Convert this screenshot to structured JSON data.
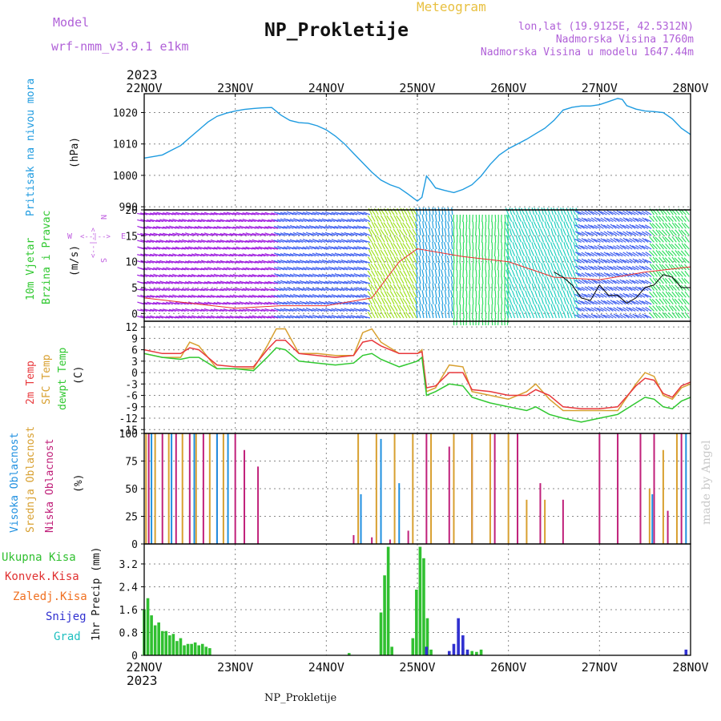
{
  "header": {
    "model_label": "Model",
    "model_name": "wrf-nmm_v3.9.1 e1km",
    "station_title": "NP_Prokletije",
    "meteogram_label": "Meteogram",
    "lonlat": "lon,lat (19.9125E, 42.5312N)",
    "elevation": "Nadmorska Visina 1760m",
    "model_elevation": "Nadmorska Visina u modelu 1647.44m",
    "year_top": "2023",
    "year_bottom": "2023",
    "footer_station": "NP_Prokletije",
    "credit": "made by Angel"
  },
  "colors": {
    "pressure": "#1e9be0",
    "temp2m": "#e8383c",
    "tempsfc": "#d8a030",
    "dewpt": "#30c830",
    "high_cloud": "#2090e0",
    "mid_cloud": "#d8a030",
    "low_cloud": "#c0207a",
    "total_precip": "#30c030",
    "conv_precip": "#e03030",
    "frz_precip": "#f07020",
    "snow": "#3030d0",
    "hail": "#20c0c0",
    "wind_dir_legend": "#c060e0"
  },
  "chart_data": [
    {
      "type": "line",
      "panel": "pressure",
      "ylabel_lines": [
        "Pritisak na nivou mora"
      ],
      "unit": "(hPa)",
      "x_tick_labels": [
        "22NOV",
        "23NOV",
        "24NOV",
        "25NOV",
        "26NOV",
        "27NOV",
        "28NOV"
      ],
      "x_range_days": [
        0,
        6
      ],
      "ylim": [
        989,
        1026
      ],
      "yticks": [
        990,
        1000,
        1010,
        1020
      ],
      "grid": true,
      "series": [
        {
          "key": "pressure",
          "x": [
            0,
            0.1,
            0.2,
            0.3,
            0.4,
            0.5,
            0.6,
            0.7,
            0.8,
            0.9,
            1.0,
            1.1,
            1.2,
            1.3,
            1.4,
            1.5,
            1.6,
            1.7,
            1.8,
            1.9,
            2.0,
            2.1,
            2.2,
            2.3,
            2.4,
            2.5,
            2.6,
            2.7,
            2.8,
            2.9,
            3.0,
            3.05,
            3.1,
            3.15,
            3.2,
            3.3,
            3.4,
            3.5,
            3.6,
            3.7,
            3.8,
            3.9,
            4.0,
            4.1,
            4.2,
            4.3,
            4.4,
            4.5,
            4.6,
            4.7,
            4.8,
            4.9,
            5.0,
            5.1,
            5.2,
            5.25,
            5.3,
            5.4,
            5.5,
            5.6,
            5.7,
            5.8,
            5.9,
            6.0
          ],
          "y": [
            1005.5,
            1006,
            1006.5,
            1008,
            1009.5,
            1012,
            1014.5,
            1017,
            1018.8,
            1019.8,
            1020.5,
            1021,
            1021.3,
            1021.5,
            1021.6,
            1019.2,
            1017.5,
            1016.8,
            1016.6,
            1015.8,
            1014.5,
            1012.5,
            1010,
            1007,
            1004,
            1001,
            998.5,
            997,
            996,
            994,
            991.8,
            993,
            999.8,
            998,
            996,
            995.2,
            994.5,
            995.5,
            997,
            999.8,
            1003.5,
            1006.5,
            1008.5,
            1010,
            1011.5,
            1013.3,
            1015,
            1017.5,
            1020.8,
            1021.7,
            1022.1,
            1022.1,
            1022.5,
            1023.5,
            1024.5,
            1024.2,
            1022.2,
            1021.1,
            1020.5,
            1020.3,
            1020,
            1018,
            1015,
            1013
          ]
        }
      ]
    },
    {
      "type": "vector",
      "panel": "wind",
      "ylabel_lines": [
        "10m Vjetar",
        "Brzina i Pravac"
      ],
      "unit": "(m/s)",
      "direction_legend": {
        "west": "W",
        "east": "E",
        "north": "N",
        "south": "S",
        "arrow_h": "<--|-->",
        "arrow_v": "<--|-->"
      },
      "ylim": [
        -1.5,
        20
      ],
      "yticks": [
        0,
        5,
        10,
        15,
        20
      ],
      "grid": true,
      "wind_speed_black": {
        "x": [
          4.5,
          4.6,
          4.7,
          4.8,
          4.9,
          5.0,
          5.1,
          5.2,
          5.3,
          5.4,
          5.5,
          5.6,
          5.7,
          5.8,
          5.9,
          6.0
        ],
        "y": [
          8.0,
          7.0,
          5.5,
          3.0,
          2.5,
          5.5,
          3.5,
          3.5,
          2.0,
          3.0,
          5.0,
          5.5,
          7.5,
          7.0,
          5.0,
          5.0
        ]
      },
      "wind_gust_red": {
        "x": [
          0,
          0.5,
          1.0,
          1.5,
          2.0,
          2.5,
          2.8,
          3.0,
          3.5,
          4.0,
          4.5,
          5.0,
          5.5,
          6.0
        ],
        "y": [
          3.0,
          2.0,
          1.0,
          1.5,
          1.5,
          3.0,
          10.0,
          12.5,
          11.0,
          10.0,
          7.0,
          6.5,
          8.0,
          9.0
        ]
      },
      "barb_colors": [
        "#a020e0",
        "#7030f0",
        "#4060f0",
        "#20a0e0",
        "#20d0c0",
        "#30e060",
        "#a0e020",
        "#e0c020",
        "#f07020",
        "#e02020"
      ],
      "barb_rows": [
        {
          "days": [
            0.0,
            1.5
          ],
          "color_index": 0,
          "angle_deg": 195
        },
        {
          "days": [
            1.5,
            2.5
          ],
          "color_index": 2,
          "angle_deg": 200
        },
        {
          "days": [
            2.5,
            3.0
          ],
          "color_index": 6,
          "angle_deg": 240
        },
        {
          "days": [
            3.0,
            3.4
          ],
          "color_index": 3,
          "angle_deg": 260
        },
        {
          "days": [
            3.4,
            4.0
          ],
          "color_index": 5,
          "angle_deg": 90
        },
        {
          "days": [
            4.0,
            4.8
          ],
          "color_index": 4,
          "angle_deg": 250
        },
        {
          "days": [
            4.8,
            5.6
          ],
          "color_index": 2,
          "angle_deg": 210
        },
        {
          "days": [
            5.6,
            6.0
          ],
          "color_index": 5,
          "angle_deg": 230
        }
      ]
    },
    {
      "type": "line",
      "panel": "temperature",
      "ylabel_lines": [
        "2m Temp",
        "SFC Temp",
        "dewpt Temp"
      ],
      "unit": "(C)",
      "ylim": [
        -16,
        13.5
      ],
      "yticks": [
        12,
        9,
        6,
        3,
        0,
        -3,
        -6,
        -9,
        -12,
        -15
      ],
      "grid": true,
      "series": [
        {
          "key": "tempsfc",
          "x": [
            0,
            0.2,
            0.4,
            0.5,
            0.6,
            0.8,
            1.0,
            1.2,
            1.35,
            1.45,
            1.55,
            1.7,
            1.9,
            2.1,
            2.3,
            2.4,
            2.5,
            2.6,
            2.8,
            3.0,
            3.05,
            3.1,
            3.2,
            3.35,
            3.5,
            3.6,
            3.8,
            4.0,
            4.2,
            4.3,
            4.45,
            4.6,
            4.8,
            5.0,
            5.2,
            5.4,
            5.5,
            5.6,
            5.7,
            5.8,
            5.9,
            6.0
          ],
          "y": [
            5,
            4,
            4,
            8,
            7,
            1,
            1,
            1,
            7,
            11.5,
            11.5,
            5,
            5,
            4.5,
            4.5,
            10.5,
            11.5,
            8,
            5,
            5,
            6,
            -5,
            -4,
            2,
            1.5,
            -5,
            -6,
            -7,
            -5,
            -3,
            -7,
            -10,
            -10,
            -10,
            -10,
            -3,
            0,
            -1,
            -6,
            -7,
            -4,
            -3
          ]
        },
        {
          "key": "temp2m",
          "x": [
            0,
            0.2,
            0.4,
            0.5,
            0.6,
            0.8,
            1.0,
            1.2,
            1.35,
            1.45,
            1.55,
            1.7,
            1.9,
            2.1,
            2.3,
            2.4,
            2.5,
            2.6,
            2.8,
            3.0,
            3.05,
            3.1,
            3.2,
            3.35,
            3.5,
            3.6,
            3.8,
            4.0,
            4.2,
            4.3,
            4.45,
            4.6,
            4.8,
            5.0,
            5.2,
            5.4,
            5.5,
            5.6,
            5.7,
            5.8,
            5.9,
            6.0
          ],
          "y": [
            6,
            5,
            5,
            6.5,
            6,
            2,
            1.5,
            1.5,
            6,
            8.5,
            8.5,
            5,
            4.5,
            4,
            4.5,
            8,
            8.5,
            7,
            5,
            5,
            5.5,
            -4,
            -3.5,
            0,
            0,
            -4.5,
            -5,
            -6,
            -6,
            -4.5,
            -6,
            -9,
            -9.5,
            -9.5,
            -9,
            -3.5,
            -1.5,
            -2,
            -5.5,
            -6.5,
            -3.5,
            -2.5
          ]
        },
        {
          "key": "dewpt",
          "x": [
            0,
            0.2,
            0.4,
            0.5,
            0.6,
            0.8,
            1.0,
            1.2,
            1.35,
            1.45,
            1.55,
            1.7,
            1.9,
            2.1,
            2.3,
            2.4,
            2.5,
            2.6,
            2.8,
            3.0,
            3.05,
            3.1,
            3.2,
            3.35,
            3.5,
            3.6,
            3.8,
            4.0,
            4.2,
            4.3,
            4.45,
            4.6,
            4.8,
            5.0,
            5.2,
            5.4,
            5.5,
            5.6,
            5.7,
            5.8,
            5.9,
            6.0
          ],
          "y": [
            5,
            4,
            3.5,
            4,
            4,
            1,
            1,
            0.5,
            4,
            6.5,
            6,
            3,
            2.5,
            2,
            2.5,
            4.5,
            5,
            3.5,
            1.5,
            3,
            4,
            -6,
            -5,
            -3,
            -3.5,
            -6.5,
            -8,
            -9,
            -10,
            -9,
            -11,
            -12,
            -13,
            -12,
            -11,
            -8,
            -6.5,
            -7,
            -9,
            -9.5,
            -7.5,
            -6.5
          ]
        }
      ]
    },
    {
      "type": "bar",
      "panel": "cloud",
      "ylabel_lines": [
        "Visoka Oblacnost",
        "Srednja Oblacnost",
        "Niska Oblacnost"
      ],
      "unit": "(%)",
      "ylim": [
        0,
        100
      ],
      "yticks": [
        0,
        25,
        50,
        75,
        100
      ],
      "grid": true,
      "series": [
        {
          "key": "low_cloud",
          "x": [
            0.05,
            0.2,
            0.35,
            0.5,
            0.65,
            0.8,
            1.0,
            1.1,
            1.25,
            2.3,
            2.5,
            2.7,
            2.9,
            3.1,
            3.35,
            3.6,
            3.85,
            4.1,
            4.35,
            4.6,
            5.0,
            5.2,
            5.45,
            5.6,
            5.75,
            5.9
          ],
          "y": [
            100,
            100,
            100,
            100,
            100,
            100,
            100,
            85,
            70,
            8,
            6,
            4,
            12,
            100,
            88,
            100,
            100,
            100,
            55,
            40,
            100,
            100,
            100,
            100,
            30,
            100
          ]
        },
        {
          "key": "mid_cloud",
          "x": [
            0.02,
            0.12,
            0.27,
            0.42,
            0.57,
            0.72,
            0.87,
            2.35,
            2.55,
            2.75,
            2.95,
            3.15,
            3.4,
            3.6,
            3.8,
            4.0,
            4.2,
            4.4,
            5.55,
            5.7,
            5.85
          ],
          "y": [
            100,
            100,
            100,
            100,
            100,
            100,
            100,
            100,
            100,
            100,
            100,
            100,
            100,
            100,
            100,
            100,
            40,
            40,
            50,
            85,
            100
          ]
        },
        {
          "key": "high_cloud",
          "x": [
            0.08,
            0.3,
            0.55,
            0.8,
            0.92,
            2.38,
            2.6,
            2.8,
            5.58,
            5.95
          ],
          "y": [
            100,
            100,
            100,
            100,
            100,
            45,
            95,
            55,
            45,
            100
          ]
        }
      ]
    },
    {
      "type": "bar",
      "panel": "precip",
      "ylabel_lines": [
        "1hr Precip (mm)"
      ],
      "legend": [
        "Ukupna Kisa",
        "Konvek.Kisa",
        "Zaledj.Kisa",
        "Snijeg",
        "Grad"
      ],
      "ylim": [
        0,
        3.9
      ],
      "yticks": [
        0,
        0.8,
        1.6,
        2.4,
        3.2
      ],
      "grid": true,
      "series": [
        {
          "key": "total_precip",
          "x": [
            0.0,
            0.04,
            0.08,
            0.12,
            0.16,
            0.2,
            0.24,
            0.28,
            0.32,
            0.36,
            0.4,
            0.44,
            0.48,
            0.52,
            0.56,
            0.6,
            0.64,
            0.68,
            0.72,
            2.25,
            2.6,
            2.64,
            2.68,
            2.72,
            2.95,
            2.99,
            3.03,
            3.07,
            3.11,
            3.15,
            3.5,
            3.55,
            3.6,
            3.65,
            3.7
          ],
          "y": [
            1.6,
            2.0,
            1.4,
            1.05,
            1.15,
            0.85,
            0.85,
            0.7,
            0.75,
            0.5,
            0.6,
            0.35,
            0.4,
            0.4,
            0.45,
            0.35,
            0.4,
            0.3,
            0.25,
            0.08,
            1.5,
            2.8,
            3.8,
            0.3,
            0.6,
            2.3,
            3.8,
            3.4,
            1.3,
            0.2,
            0.25,
            0.1,
            0.15,
            0.12,
            0.2
          ]
        },
        {
          "key": "snow",
          "x": [
            3.1,
            3.35,
            3.4,
            3.45,
            3.5,
            3.55,
            5.95
          ],
          "y": [
            0.3,
            0.15,
            0.4,
            1.3,
            0.7,
            0.2,
            0.2
          ]
        }
      ]
    }
  ]
}
